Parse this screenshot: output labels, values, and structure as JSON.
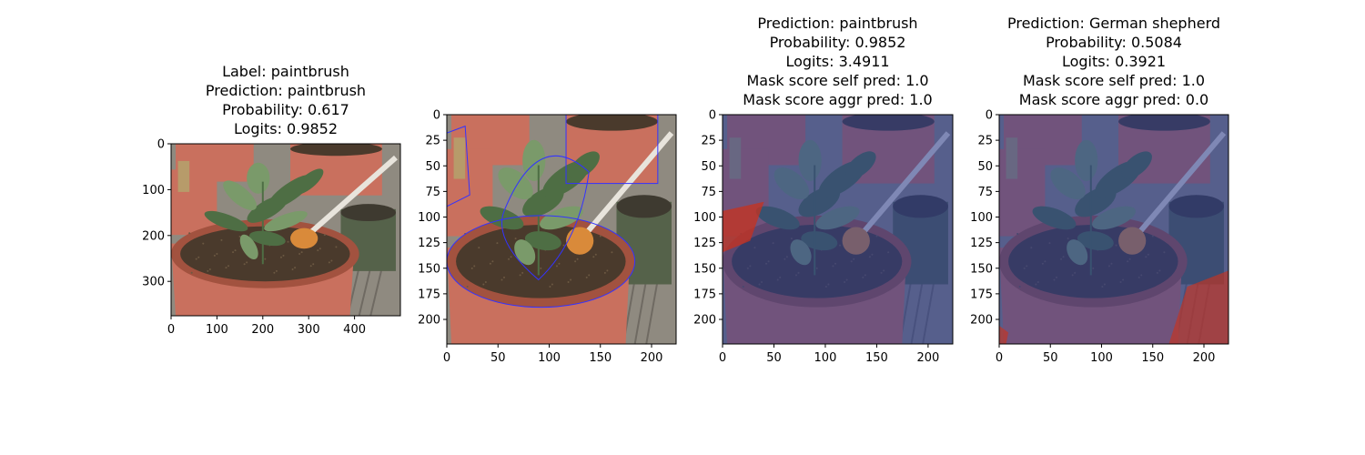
{
  "chart_data": [
    {
      "type": "image",
      "title_lines": [
        "Label: paintbrush",
        "Prediction: paintbrush",
        "Probability: 0.617",
        "Logits: 0.9852"
      ],
      "xlim": [
        0,
        500
      ],
      "ylim": [
        375,
        0
      ],
      "xticks": [
        0,
        100,
        200,
        300,
        400
      ],
      "yticks": [
        0,
        100,
        200,
        300
      ],
      "overlay": "none"
    },
    {
      "type": "image",
      "title_lines": [],
      "xlim": [
        0,
        224
      ],
      "ylim": [
        224,
        0
      ],
      "xticks": [
        0,
        50,
        100,
        150,
        200
      ],
      "yticks": [
        0,
        25,
        50,
        75,
        100,
        125,
        150,
        175,
        200
      ],
      "overlay": "contour"
    },
    {
      "type": "image",
      "title_lines": [
        "Prediction: paintbrush",
        "Probability: 0.9852",
        "Logits: 3.4911",
        "Mask score self pred: 1.0",
        "Mask score aggr pred: 1.0"
      ],
      "xlim": [
        0,
        224
      ],
      "ylim": [
        224,
        0
      ],
      "xticks": [
        0,
        50,
        100,
        150,
        200
      ],
      "yticks": [
        0,
        25,
        50,
        75,
        100,
        125,
        150,
        175,
        200
      ],
      "overlay": "mask"
    },
    {
      "type": "image",
      "title_lines": [
        "Prediction: German shepherd",
        "Probability: 0.5084",
        "Logits: 0.3921",
        "Mask score self pred: 1.0",
        "Mask score aggr pred: 0.0"
      ],
      "xlim": [
        0,
        224
      ],
      "ylim": [
        224,
        0
      ],
      "xticks": [
        0,
        50,
        100,
        150,
        200
      ],
      "yticks": [
        0,
        25,
        50,
        75,
        100,
        125,
        150,
        175,
        200
      ],
      "overlay": "mask"
    }
  ],
  "colors": {
    "pot": "#c9705e",
    "pot_dark": "#a2523f",
    "soil": "#4a3a2c",
    "leaf": "#7a9a6a",
    "leaf_dark": "#4e6e44",
    "deck": "#8f8a80",
    "green_pot": "#55624a",
    "brush_tip": "#d98a3a",
    "mask_blue": "#283c96",
    "mask_red": "#c8321e",
    "contour": "#3333ff"
  }
}
